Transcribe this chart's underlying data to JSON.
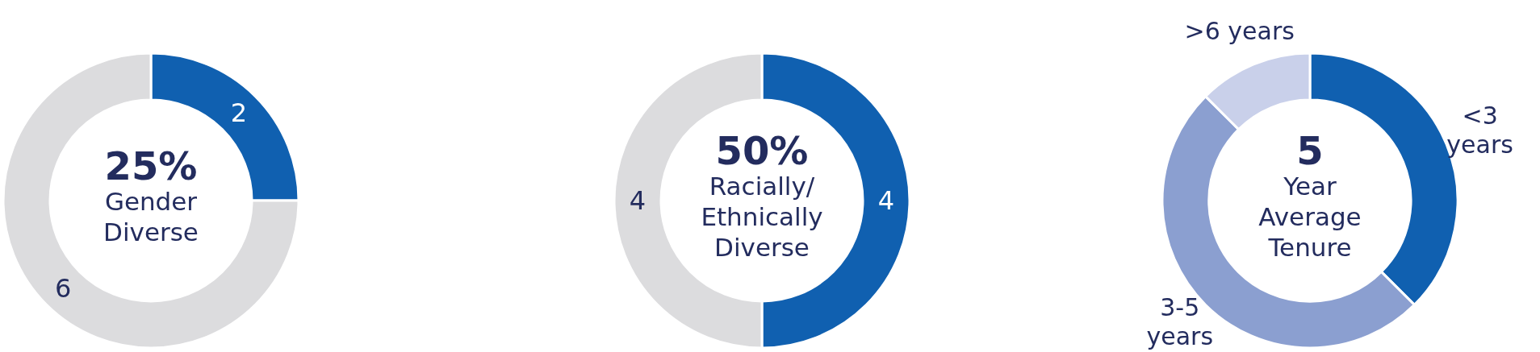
{
  "chart_data": [
    {
      "type": "donut",
      "title": "25%",
      "subtitle": "Gender Diverse",
      "categories": [
        null,
        null
      ],
      "values": [
        2,
        6
      ],
      "colors": [
        "#1060b0",
        "#dcdcde"
      ],
      "data_labels": true
    },
    {
      "type": "donut",
      "title": "50%",
      "subtitle": "Racially/ Ethnically Diverse",
      "categories": [
        null,
        null
      ],
      "values": [
        4,
        4
      ],
      "colors": [
        "#1060b0",
        "#dcdcde"
      ],
      "data_labels": true
    },
    {
      "type": "donut",
      "title": "5",
      "subtitle": "Year Average Tenure",
      "categories": [
        "<3 years",
        "3-5 years",
        ">6 years"
      ],
      "values": [
        37.5,
        50,
        12.5
      ],
      "colors": [
        "#1060b0",
        "#8b9fd0",
        "#c9d0ea"
      ]
    }
  ]
}
